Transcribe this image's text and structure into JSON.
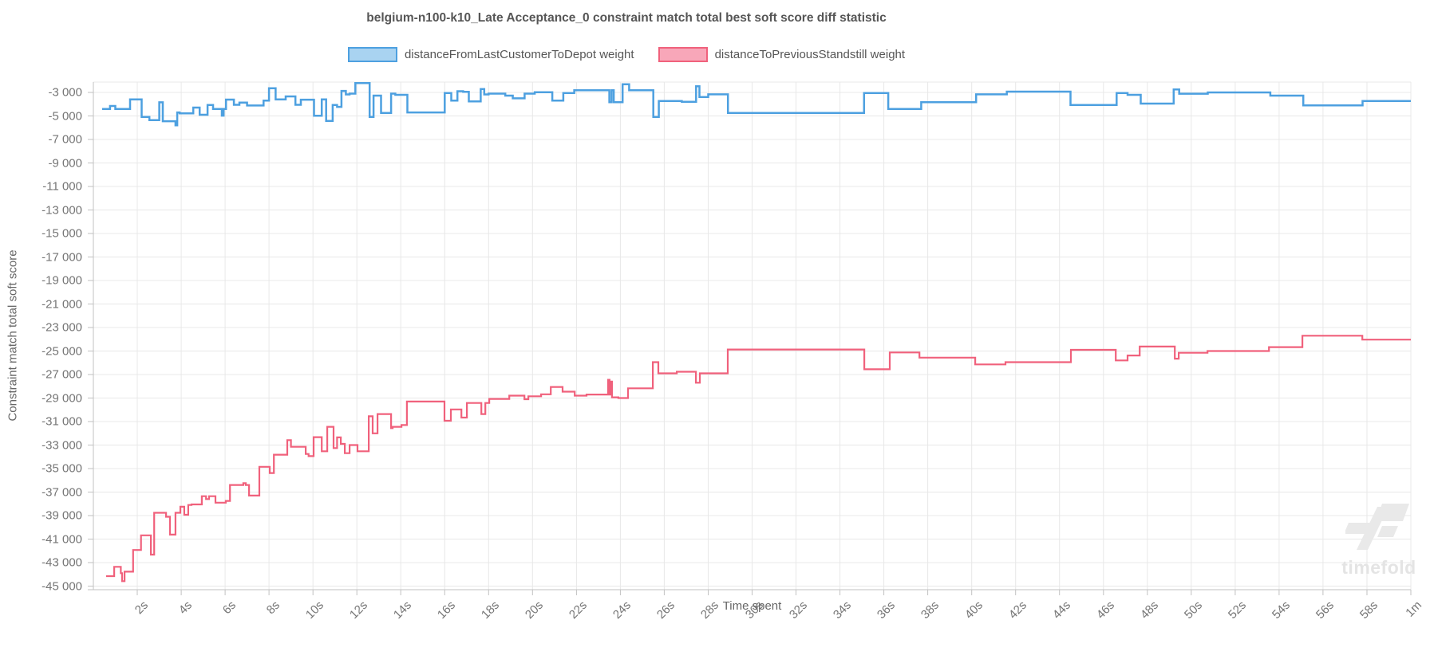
{
  "title": "belgium-n100-k10_Late Acceptance_0 constraint match total best soft score diff statistic",
  "watermark": {
    "text": "timefold",
    "logo_color": "#e9e9e9"
  },
  "legend": [
    {
      "label": "distanceFromLastCustomerToDepot weight",
      "border": "#4da0e0",
      "fill": "#a9d3f1"
    },
    {
      "label": "distanceToPreviousStandstill weight",
      "border": "#f0617c",
      "fill": "#f8a7b9"
    }
  ],
  "chart_data": {
    "type": "line",
    "step": true,
    "title": "belgium-n100-k10_Late Acceptance_0 constraint match total best soft score diff statistic",
    "xlabel": "Time spent",
    "ylabel": "Constraint match total soft score",
    "xlim": [
      0,
      60
    ],
    "grid": true,
    "legend_position": "top",
    "colors": {
      "grid": "#e8e8e8",
      "axis": "#c2c2c2",
      "tick_text": "#757575"
    },
    "x_ticks": [
      {
        "t": 2,
        "label": "2s"
      },
      {
        "t": 4,
        "label": "4s"
      },
      {
        "t": 6,
        "label": "6s"
      },
      {
        "t": 8,
        "label": "8s"
      },
      {
        "t": 10,
        "label": "10s"
      },
      {
        "t": 12,
        "label": "12s"
      },
      {
        "t": 14,
        "label": "14s"
      },
      {
        "t": 16,
        "label": "16s"
      },
      {
        "t": 18,
        "label": "18s"
      },
      {
        "t": 20,
        "label": "20s"
      },
      {
        "t": 22,
        "label": "22s"
      },
      {
        "t": 24,
        "label": "24s"
      },
      {
        "t": 26,
        "label": "26s"
      },
      {
        "t": 28,
        "label": "28s"
      },
      {
        "t": 30,
        "label": "30s"
      },
      {
        "t": 32,
        "label": "32s"
      },
      {
        "t": 34,
        "label": "34s"
      },
      {
        "t": 36,
        "label": "36s"
      },
      {
        "t": 38,
        "label": "38s"
      },
      {
        "t": 40,
        "label": "40s"
      },
      {
        "t": 42,
        "label": "42s"
      },
      {
        "t": 44,
        "label": "44s"
      },
      {
        "t": 46,
        "label": "46s"
      },
      {
        "t": 48,
        "label": "48s"
      },
      {
        "t": 50,
        "label": "50s"
      },
      {
        "t": 52,
        "label": "52s"
      },
      {
        "t": 54,
        "label": "54s"
      },
      {
        "t": 56,
        "label": "56s"
      },
      {
        "t": 58,
        "label": "58s"
      },
      {
        "t": 60,
        "label": "1m"
      }
    ],
    "y_ticks": [
      {
        "v": -3000,
        "label": "-3 000"
      },
      {
        "v": -5000,
        "label": "-5 000"
      },
      {
        "v": -7000,
        "label": "-7 000"
      },
      {
        "v": -9000,
        "label": "-9 000"
      },
      {
        "v": -11000,
        "label": "-11 000"
      },
      {
        "v": -13000,
        "label": "-13 000"
      },
      {
        "v": -15000,
        "label": "-15 000"
      },
      {
        "v": -17000,
        "label": "-17 000"
      },
      {
        "v": -19000,
        "label": "-19 000"
      },
      {
        "v": -21000,
        "label": "-21 000"
      },
      {
        "v": -23000,
        "label": "-23 000"
      },
      {
        "v": -25000,
        "label": "-25 000"
      },
      {
        "v": -27000,
        "label": "-27 000"
      },
      {
        "v": -29000,
        "label": "-29 000"
      },
      {
        "v": -31000,
        "label": "-31 000"
      },
      {
        "v": -33000,
        "label": "-33 000"
      },
      {
        "v": -35000,
        "label": "-35 000"
      },
      {
        "v": -37000,
        "label": "-37 000"
      },
      {
        "v": -39000,
        "label": "-39 000"
      },
      {
        "v": -41000,
        "label": "-41 000"
      },
      {
        "v": -43000,
        "label": "-43 000"
      },
      {
        "v": -45000,
        "label": "-45 000"
      }
    ],
    "series": [
      {
        "name": "distanceFromLastCustomerToDepot weight",
        "color": "#4da0e0",
        "width": 2.5,
        "points": [
          [
            0.4,
            -4400
          ],
          [
            0.76,
            -4150
          ],
          [
            1.0,
            -4400
          ],
          [
            1.67,
            -3600
          ],
          [
            2.2,
            -5080
          ],
          [
            2.55,
            -5350
          ],
          [
            3.0,
            -3840
          ],
          [
            3.16,
            -5450
          ],
          [
            3.74,
            -5800
          ],
          [
            3.82,
            -4700
          ],
          [
            3.93,
            -4780
          ],
          [
            4.55,
            -4290
          ],
          [
            4.84,
            -4900
          ],
          [
            5.2,
            -4070
          ],
          [
            5.45,
            -4400
          ],
          [
            5.85,
            -4970
          ],
          [
            5.93,
            -4400
          ],
          [
            6.04,
            -3610
          ],
          [
            6.4,
            -4050
          ],
          [
            6.65,
            -3870
          ],
          [
            7.0,
            -4110
          ],
          [
            7.75,
            -3700
          ],
          [
            8.0,
            -2650
          ],
          [
            8.3,
            -3600
          ],
          [
            8.76,
            -3340
          ],
          [
            9.2,
            -4050
          ],
          [
            9.45,
            -3620
          ],
          [
            10.05,
            -4980
          ],
          [
            10.4,
            -3600
          ],
          [
            10.6,
            -5430
          ],
          [
            10.9,
            -4070
          ],
          [
            11.1,
            -4230
          ],
          [
            11.3,
            -2870
          ],
          [
            11.5,
            -3170
          ],
          [
            11.67,
            -3100
          ],
          [
            11.93,
            -2200
          ],
          [
            12.58,
            -5080
          ],
          [
            12.76,
            -3270
          ],
          [
            13.1,
            -4750
          ],
          [
            13.56,
            -3100
          ],
          [
            13.75,
            -3200
          ],
          [
            14.3,
            -4700
          ],
          [
            16.0,
            -3050
          ],
          [
            16.3,
            -3700
          ],
          [
            16.58,
            -2900
          ],
          [
            16.84,
            -2950
          ],
          [
            17.1,
            -3760
          ],
          [
            17.64,
            -2710
          ],
          [
            17.8,
            -3170
          ],
          [
            18.0,
            -3100
          ],
          [
            18.76,
            -3270
          ],
          [
            19.1,
            -3500
          ],
          [
            19.64,
            -3100
          ],
          [
            20.1,
            -2980
          ],
          [
            20.9,
            -3700
          ],
          [
            21.4,
            -3050
          ],
          [
            21.9,
            -2820
          ],
          [
            23.5,
            -3835
          ],
          [
            23.6,
            -2820
          ],
          [
            23.7,
            -3835
          ],
          [
            24.1,
            -2300
          ],
          [
            24.4,
            -2820
          ],
          [
            25.5,
            -5080
          ],
          [
            25.75,
            -3725
          ],
          [
            26.8,
            -3800
          ],
          [
            27.45,
            -2480
          ],
          [
            27.6,
            -3390
          ],
          [
            28.0,
            -3160
          ],
          [
            28.9,
            -4745
          ],
          [
            35.1,
            -3045
          ],
          [
            36.2,
            -4400
          ],
          [
            37.7,
            -3835
          ],
          [
            40.2,
            -3160
          ],
          [
            41.6,
            -2930
          ],
          [
            44.5,
            -4065
          ],
          [
            46.6,
            -3045
          ],
          [
            47.1,
            -3200
          ],
          [
            47.7,
            -3950
          ],
          [
            49.2,
            -2750
          ],
          [
            49.45,
            -3110
          ],
          [
            50.75,
            -3000
          ],
          [
            53.6,
            -3270
          ],
          [
            55.1,
            -4100
          ],
          [
            57.8,
            -3725
          ]
        ]
      },
      {
        "name": "distanceToPreviousStandstill weight",
        "color": "#f0617c",
        "width": 2.2,
        "points": [
          [
            0.58,
            -44150
          ],
          [
            0.95,
            -43360
          ],
          [
            1.25,
            -43900
          ],
          [
            1.31,
            -44580
          ],
          [
            1.42,
            -43770
          ],
          [
            1.81,
            -41930
          ],
          [
            2.17,
            -40680
          ],
          [
            2.62,
            -42320
          ],
          [
            2.77,
            -38760
          ],
          [
            3.31,
            -39100
          ],
          [
            3.49,
            -40620
          ],
          [
            3.74,
            -38760
          ],
          [
            3.96,
            -38250
          ],
          [
            4.14,
            -38930
          ],
          [
            4.32,
            -38100
          ],
          [
            4.47,
            -38050
          ],
          [
            4.94,
            -37350
          ],
          [
            5.13,
            -37600
          ],
          [
            5.27,
            -37350
          ],
          [
            5.56,
            -37900
          ],
          [
            6.03,
            -37750
          ],
          [
            6.22,
            -36400
          ],
          [
            6.83,
            -36250
          ],
          [
            6.94,
            -36400
          ],
          [
            7.09,
            -37300
          ],
          [
            7.56,
            -34850
          ],
          [
            8.03,
            -35380
          ],
          [
            8.22,
            -33820
          ],
          [
            8.83,
            -32580
          ],
          [
            9.0,
            -33150
          ],
          [
            9.67,
            -33760
          ],
          [
            9.8,
            -33940
          ],
          [
            10.03,
            -32330
          ],
          [
            10.4,
            -33530
          ],
          [
            10.65,
            -31450
          ],
          [
            10.94,
            -33260
          ],
          [
            11.1,
            -32350
          ],
          [
            11.27,
            -32900
          ],
          [
            11.45,
            -33690
          ],
          [
            11.67,
            -33000
          ],
          [
            12.03,
            -33530
          ],
          [
            12.54,
            -30550
          ],
          [
            12.72,
            -32000
          ],
          [
            12.94,
            -30360
          ],
          [
            13.56,
            -31560
          ],
          [
            13.63,
            -31450
          ],
          [
            14.03,
            -31300
          ],
          [
            14.28,
            -29300
          ],
          [
            15.99,
            -30930
          ],
          [
            16.28,
            -29970
          ],
          [
            16.76,
            -30660
          ],
          [
            17.01,
            -29420
          ],
          [
            17.67,
            -30360
          ],
          [
            17.85,
            -29420
          ],
          [
            18.03,
            -29075
          ],
          [
            18.94,
            -28800
          ],
          [
            19.63,
            -29100
          ],
          [
            19.81,
            -28850
          ],
          [
            20.39,
            -28680
          ],
          [
            20.83,
            -28060
          ],
          [
            21.37,
            -28460
          ],
          [
            21.92,
            -28800
          ],
          [
            22.46,
            -28700
          ],
          [
            23.44,
            -27450
          ],
          [
            23.51,
            -28700
          ],
          [
            23.59,
            -27600
          ],
          [
            23.62,
            -28940
          ],
          [
            23.91,
            -29000
          ],
          [
            24.35,
            -28170
          ],
          [
            25.48,
            -25950
          ],
          [
            25.73,
            -26900
          ],
          [
            26.57,
            -26760
          ],
          [
            27.44,
            -27700
          ],
          [
            27.62,
            -26900
          ],
          [
            28.89,
            -24870
          ],
          [
            35.11,
            -26550
          ],
          [
            36.27,
            -25120
          ],
          [
            37.62,
            -25560
          ],
          [
            40.16,
            -26140
          ],
          [
            41.54,
            -25950
          ],
          [
            44.52,
            -24900
          ],
          [
            46.56,
            -25800
          ],
          [
            47.1,
            -25380
          ],
          [
            47.65,
            -24620
          ],
          [
            49.25,
            -25650
          ],
          [
            49.43,
            -25150
          ],
          [
            50.74,
            -25000
          ],
          [
            53.54,
            -24670
          ],
          [
            55.06,
            -23700
          ],
          [
            57.79,
            -24030
          ]
        ]
      }
    ]
  }
}
